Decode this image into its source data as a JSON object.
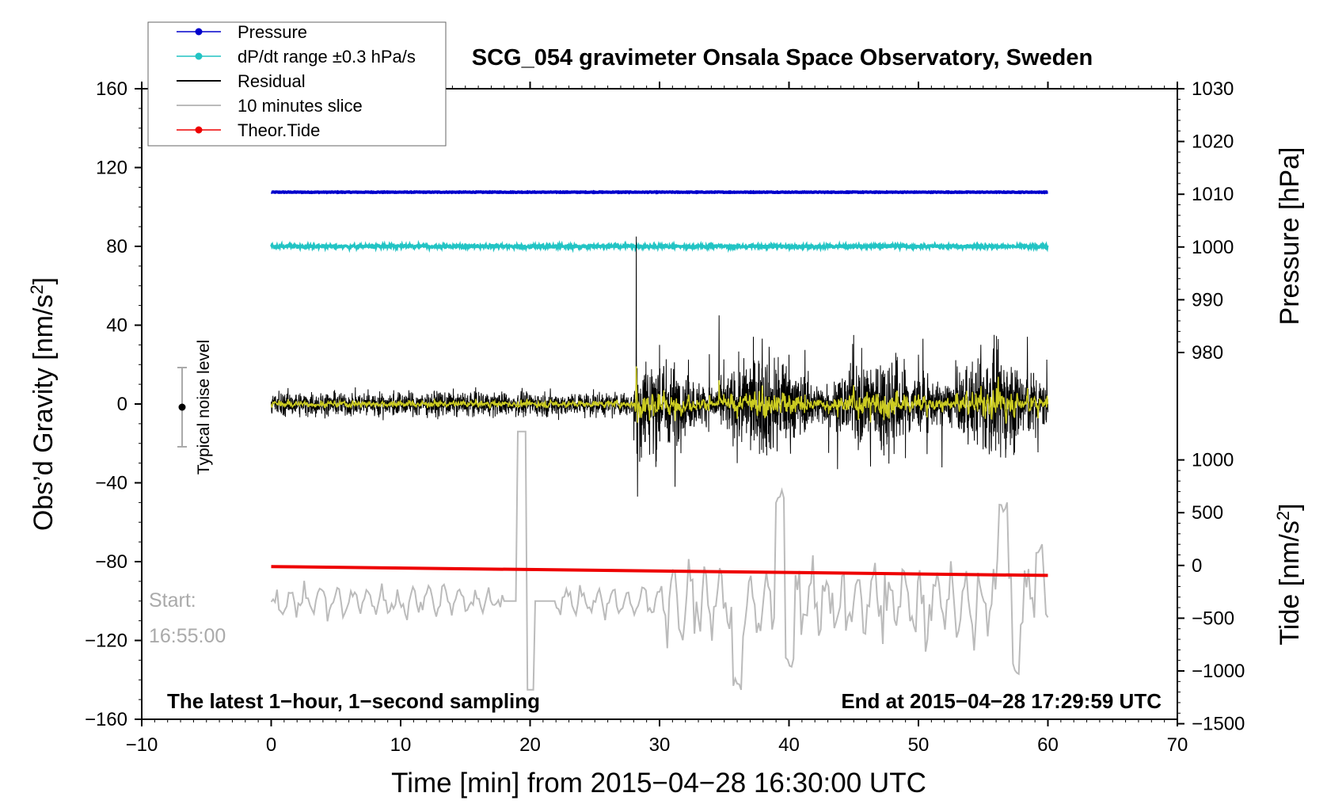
{
  "chart_data": {
    "type": "line",
    "title": "SCG_054 gravimeter Onsala Space Observatory, Sweden",
    "xlabel": "Time [min] from 2015−04−28 16:30:00 UTC",
    "ylabel_left": "Obs’d Gravity [nm/s²]",
    "ylabel_right_top": "Pressure [hPa]",
    "ylabel_right_bottom": "Tide [nm/s²]",
    "xlim": [
      -10,
      70
    ],
    "ylim": [
      -160,
      160
    ],
    "pressure_axis": {
      "ticks": [
        "1030",
        "1020",
        "1010",
        "1000",
        "990",
        "980"
      ]
    },
    "tide_axis": {
      "ticks": [
        "1000",
        "500",
        "0",
        "−500",
        "−1000",
        "−1500"
      ]
    },
    "x_ticks": [
      "−10",
      "0",
      "10",
      "20",
      "30",
      "40",
      "50",
      "60",
      "70"
    ],
    "y_ticks": [
      "160",
      "120",
      "80",
      "40",
      "0",
      "−40",
      "−80",
      "−120",
      "−160"
    ],
    "colors": {
      "pressure": "#0000cc",
      "dpdt": "#22c4c4",
      "residual": "#000000",
      "slice": "#bbbbbb",
      "tide": "#ee0000",
      "filtered": "#cccc22"
    },
    "series": [
      {
        "name": "Pressure",
        "x": [
          0,
          60
        ],
        "y": [
          107.5,
          107.5
        ],
        "pressure_hPa": 1010
      },
      {
        "name": "dP/dt range ±0.3 hPa/s",
        "x": [
          0,
          60
        ],
        "y": [
          80,
          80
        ]
      },
      {
        "name": "Residual",
        "x": [
          0,
          10,
          20,
          26,
          28.2,
          28.3,
          30,
          31.2,
          33,
          34.6,
          36,
          40,
          45,
          50,
          55,
          60
        ],
        "y": [
          0,
          0,
          0,
          0,
          85,
          -47,
          30,
          -42,
          20,
          45,
          -30,
          25,
          35,
          25,
          20,
          5
        ]
      },
      {
        "name": "10 minutes slice",
        "start_label": "Start:",
        "start_time": "16:55:00",
        "x": [
          0,
          10,
          18.5,
          19.3,
          20,
          21,
          30,
          35,
          36,
          39.3,
          40,
          50,
          56.5,
          57.5,
          59.3,
          60
        ],
        "y": [
          -100,
          -100,
          -110,
          -14,
          -145,
          -100,
          -100,
          -95,
          -142,
          -48,
          -130,
          -100,
          -52,
          -135,
          -74,
          -103
        ]
      },
      {
        "name": "Theor.Tide",
        "x": [
          0,
          60
        ],
        "y": [
          -82.5,
          -87
        ]
      }
    ],
    "annotations": {
      "noise_label": "Typical noise level",
      "noise_range": [
        -20,
        20
      ],
      "bottom_left": "The latest 1−hour, 1−second sampling",
      "bottom_right": "End at 2015−04−28 17:29:59 UTC"
    },
    "legend_position": "top-left"
  }
}
